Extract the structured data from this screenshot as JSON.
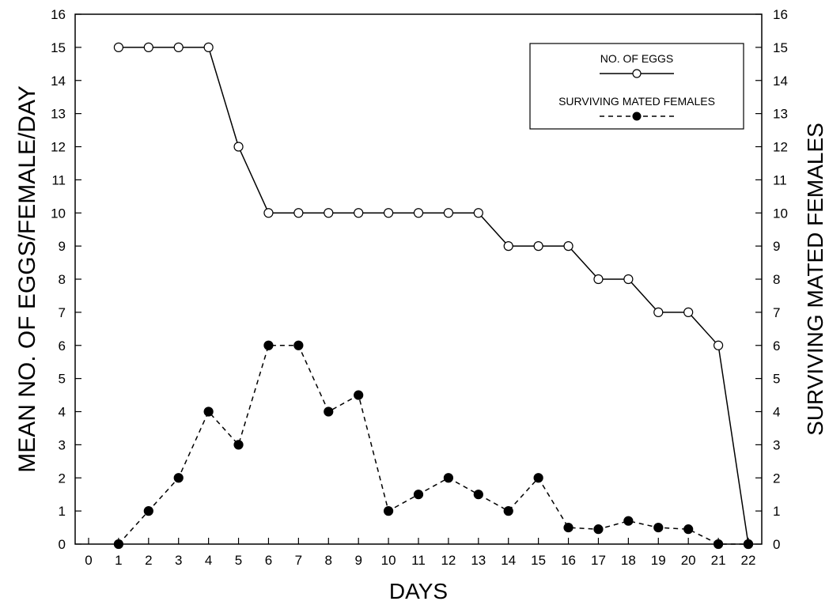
{
  "chart_data": {
    "type": "line",
    "xlabel": "DAYS",
    "ylabel_left": "MEAN NO. OF EGGS/FEMALE/DAY",
    "ylabel_right": "SURVIVING MATED FEMALES",
    "xlim": [
      0,
      22
    ],
    "ylim": [
      0,
      16
    ],
    "x_ticks": [
      0,
      1,
      2,
      3,
      4,
      5,
      6,
      7,
      8,
      9,
      10,
      11,
      12,
      13,
      14,
      15,
      16,
      17,
      18,
      19,
      20,
      21,
      22
    ],
    "y_ticks": [
      0,
      1,
      2,
      3,
      4,
      5,
      6,
      7,
      8,
      9,
      10,
      11,
      12,
      13,
      14,
      15,
      16
    ],
    "grid": false,
    "legend_position": "top-right",
    "series": [
      {
        "name": "NO. OF EGGS",
        "line_style": "solid",
        "marker": "open-circle",
        "x": [
          1,
          2,
          3,
          4,
          5,
          6,
          7,
          8,
          9,
          10,
          11,
          12,
          13,
          14,
          15,
          16,
          17,
          18,
          19,
          20,
          21,
          22
        ],
        "values": [
          15,
          15,
          15,
          15,
          12,
          10,
          10,
          10,
          10,
          10,
          10,
          10,
          10,
          9,
          9,
          9,
          8,
          8,
          7,
          7,
          6,
          0
        ]
      },
      {
        "name": "SURVIVING MATED FEMALES",
        "line_style": "dashed",
        "marker": "filled-circle",
        "x": [
          1,
          2,
          3,
          4,
          5,
          6,
          7,
          8,
          9,
          10,
          11,
          12,
          13,
          14,
          15,
          16,
          17,
          18,
          19,
          20,
          21,
          22
        ],
        "values": [
          0,
          1,
          2,
          4,
          3,
          6,
          6,
          4,
          4.5,
          1,
          1.5,
          2,
          1.5,
          1,
          2,
          0.5,
          0.45,
          0.7,
          0.5,
          0.45,
          0,
          0
        ]
      }
    ],
    "colors": {
      "ink": "#000000",
      "background": "#ffffff"
    }
  }
}
